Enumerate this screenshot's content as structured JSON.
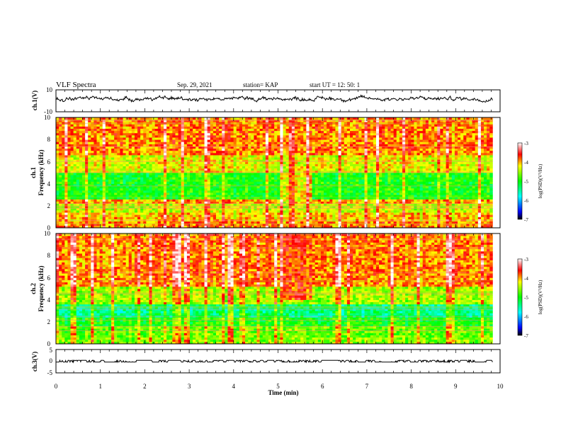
{
  "header": {
    "title": "VLF Spectra",
    "date": "Sep. 29, 2021",
    "station": "station= KAP",
    "start": "start UT =  12: 50: 1"
  },
  "chart_data": [
    {
      "type": "line",
      "panel": "ch1-waveform",
      "ylabel": "ch.1(V)",
      "ylim": [
        -10,
        10
      ],
      "yticks": [
        "10",
        "-10"
      ],
      "xlim": [
        0,
        10
      ],
      "trace_color": "#000000",
      "mean_value": 2,
      "noise_range": [
        -3,
        8
      ]
    },
    {
      "type": "heatmap",
      "panel": "ch1-spectrogram",
      "ylabel": "ch.1\nFrequency (kHz)",
      "ylim": [
        0,
        10
      ],
      "yticks": [
        "0",
        "2",
        "4",
        "6",
        "8",
        "10"
      ],
      "xlim": [
        0,
        9.83
      ],
      "colorbar": {
        "label": "log(PSD)(V²/Hz)",
        "range": [
          -7,
          -3
        ],
        "ticks": [
          "-3",
          "-4",
          "-5",
          "-6",
          "-7"
        ]
      },
      "bands": [
        {
          "f": [
            0,
            0.6
          ],
          "level": -3.9
        },
        {
          "f": [
            0.6,
            1.4
          ],
          "level": -4.1
        },
        {
          "f": [
            1.4,
            2.2
          ],
          "level": -4.4
        },
        {
          "f": [
            2.2,
            2.6
          ],
          "level": -4.0
        },
        {
          "f": [
            2.6,
            5.0
          ],
          "level": -5.0
        },
        {
          "f": [
            5.0,
            6.5
          ],
          "level": -4.3
        },
        {
          "f": [
            6.5,
            10.0
          ],
          "level": -3.9
        }
      ],
      "event": {
        "t": [
          5.05,
          5.75
        ],
        "f": [
          2.2,
          5.6
        ],
        "level": -4.2
      }
    },
    {
      "type": "heatmap",
      "panel": "ch2-spectrogram",
      "ylabel": "ch.2\nFrequency (kHz)",
      "ylim": [
        0,
        10
      ],
      "yticks": [
        "0",
        "2",
        "4",
        "6",
        "8",
        "10"
      ],
      "xlim": [
        0,
        9.83
      ],
      "colorbar": {
        "label": "log(PSD)(V²/Hz)",
        "range": [
          -7,
          -3
        ],
        "ticks": [
          "-3",
          "-4",
          "-5",
          "-6",
          "-7"
        ]
      },
      "bands": [
        {
          "f": [
            0,
            0.5
          ],
          "level": -4.6
        },
        {
          "f": [
            0.5,
            1.5
          ],
          "level": -4.7
        },
        {
          "f": [
            1.5,
            2.3
          ],
          "level": -5.0
        },
        {
          "f": [
            2.3,
            3.6
          ],
          "level": -5.4
        },
        {
          "f": [
            3.6,
            5.2
          ],
          "level": -4.5
        },
        {
          "f": [
            5.2,
            10.0
          ],
          "level": -3.9
        }
      ],
      "event": {
        "t": [
          5.05,
          5.75
        ],
        "f": [
          4.0,
          10.0
        ],
        "level": -3.8
      }
    },
    {
      "type": "line",
      "panel": "ch3-waveform",
      "ylabel": "ch.3(V)",
      "ylim": [
        -5,
        5
      ],
      "yticks": [
        "5",
        "0",
        "-5"
      ],
      "xlim": [
        0,
        10
      ],
      "trace_color": "#000000",
      "mean_value": 0,
      "noise_range": [
        -0.4,
        0.4
      ]
    }
  ],
  "xaxis": {
    "label": "Time (min)",
    "range": [
      0,
      10
    ],
    "ticks": [
      "0",
      "1",
      "2",
      "3",
      "4",
      "5",
      "6",
      "7",
      "8",
      "9",
      "10"
    ]
  }
}
